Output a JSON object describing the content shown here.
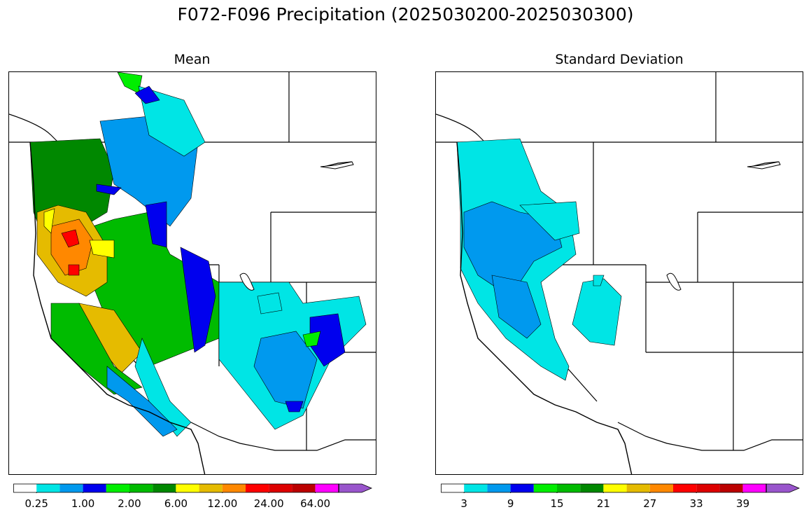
{
  "title": "F072-F096 Precipitation (2025030200-2025030300)",
  "panels": {
    "mean": {
      "title": "Mean",
      "colorbar": {
        "colors": [
          "#ffffff",
          "#00e5e5",
          "#0099ee",
          "#0000ee",
          "#00ee00",
          "#00bb00",
          "#008800",
          "#ffff00",
          "#e5bb00",
          "#ff8800",
          "#ff0000",
          "#dd0000",
          "#bb0000",
          "#ff00ff",
          "#9955cc"
        ],
        "tick_labels": [
          "0.25",
          "1.00",
          "2.00",
          "6.00",
          "12.00",
          "24.00",
          "64.00"
        ],
        "extend": "max"
      }
    },
    "std": {
      "title": "Standard Deviation",
      "colorbar": {
        "colors": [
          "#ffffff",
          "#00e5e5",
          "#0099ee",
          "#0000ee",
          "#00ee00",
          "#00bb00",
          "#008800",
          "#ffff00",
          "#e5bb00",
          "#ff8800",
          "#ff0000",
          "#dd0000",
          "#bb0000",
          "#ff00ff",
          "#9955cc"
        ],
        "tick_labels": [
          "3",
          "9",
          "15",
          "21",
          "27",
          "33",
          "39"
        ],
        "extend": "max"
      }
    }
  }
}
